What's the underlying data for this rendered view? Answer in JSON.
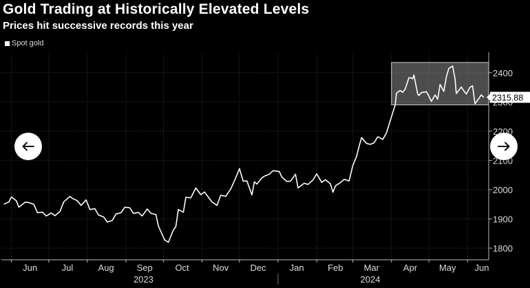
{
  "header": {
    "title": "Gold Trading at Historically Elevated Levels",
    "subtitle": "Prices hit successive records this year"
  },
  "navigation": {
    "prev_icon": "arrow-left-icon",
    "next_icon": "arrow-right-icon"
  },
  "chart_data": {
    "type": "line",
    "series": [
      {
        "name": "Spot gold",
        "color": "#ffffff",
        "points": [
          [
            "2023-05-26",
            1950
          ],
          [
            "2023-05-30",
            1958
          ],
          [
            "2023-06-01",
            1975
          ],
          [
            "2023-06-05",
            1962
          ],
          [
            "2023-06-07",
            1940
          ],
          [
            "2023-06-12",
            1957
          ],
          [
            "2023-06-15",
            1956
          ],
          [
            "2023-06-19",
            1950
          ],
          [
            "2023-06-22",
            1921
          ],
          [
            "2023-06-26",
            1923
          ],
          [
            "2023-06-29",
            1910
          ],
          [
            "2023-07-03",
            1920
          ],
          [
            "2023-07-06",
            1911
          ],
          [
            "2023-07-10",
            1925
          ],
          [
            "2023-07-13",
            1958
          ],
          [
            "2023-07-18",
            1977
          ],
          [
            "2023-07-20",
            1970
          ],
          [
            "2023-07-24",
            1962
          ],
          [
            "2023-07-27",
            1946
          ],
          [
            "2023-07-31",
            1965
          ],
          [
            "2023-08-03",
            1932
          ],
          [
            "2023-08-07",
            1935
          ],
          [
            "2023-08-10",
            1913
          ],
          [
            "2023-08-14",
            1907
          ],
          [
            "2023-08-17",
            1889
          ],
          [
            "2023-08-21",
            1895
          ],
          [
            "2023-08-24",
            1917
          ],
          [
            "2023-08-28",
            1921
          ],
          [
            "2023-08-31",
            1940
          ],
          [
            "2023-09-04",
            1938
          ],
          [
            "2023-09-07",
            1919
          ],
          [
            "2023-09-11",
            1922
          ],
          [
            "2023-09-14",
            1910
          ],
          [
            "2023-09-18",
            1934
          ],
          [
            "2023-09-21",
            1919
          ],
          [
            "2023-09-25",
            1915
          ],
          [
            "2023-09-27",
            1875
          ],
          [
            "2023-10-02",
            1828
          ],
          [
            "2023-10-05",
            1820
          ],
          [
            "2023-10-09",
            1862
          ],
          [
            "2023-10-11",
            1874
          ],
          [
            "2023-10-13",
            1932
          ],
          [
            "2023-10-17",
            1923
          ],
          [
            "2023-10-19",
            1974
          ],
          [
            "2023-10-23",
            1972
          ],
          [
            "2023-10-27",
            2006
          ],
          [
            "2023-10-31",
            1983
          ],
          [
            "2023-11-03",
            1992
          ],
          [
            "2023-11-07",
            1969
          ],
          [
            "2023-11-09",
            1958
          ],
          [
            "2023-11-13",
            1946
          ],
          [
            "2023-11-16",
            1981
          ],
          [
            "2023-11-20",
            1977
          ],
          [
            "2023-11-22",
            1990
          ],
          [
            "2023-11-24",
            2002
          ],
          [
            "2023-11-28",
            2040
          ],
          [
            "2023-12-01",
            2072
          ],
          [
            "2023-12-04",
            2029
          ],
          [
            "2023-12-07",
            2030
          ],
          [
            "2023-12-11",
            1982
          ],
          [
            "2023-12-13",
            2027
          ],
          [
            "2023-12-15",
            2019
          ],
          [
            "2023-12-19",
            2040
          ],
          [
            "2023-12-21",
            2046
          ],
          [
            "2023-12-25",
            2053
          ],
          [
            "2023-12-28",
            2065
          ],
          [
            "2024-01-02",
            2062
          ],
          [
            "2024-01-04",
            2043
          ],
          [
            "2024-01-08",
            2028
          ],
          [
            "2024-01-11",
            2029
          ],
          [
            "2024-01-15",
            2053
          ],
          [
            "2024-01-17",
            2006
          ],
          [
            "2024-01-22",
            2022
          ],
          [
            "2024-01-25",
            2018
          ],
          [
            "2024-01-29",
            2033
          ],
          [
            "2024-02-01",
            2054
          ],
          [
            "2024-02-05",
            2025
          ],
          [
            "2024-02-08",
            2034
          ],
          [
            "2024-02-12",
            2020
          ],
          [
            "2024-02-14",
            1991
          ],
          [
            "2024-02-16",
            2013
          ],
          [
            "2024-02-20",
            2024
          ],
          [
            "2024-02-23",
            2035
          ],
          [
            "2024-02-27",
            2030
          ],
          [
            "2024-03-01",
            2083
          ],
          [
            "2024-03-04",
            2114
          ],
          [
            "2024-03-06",
            2148
          ],
          [
            "2024-03-08",
            2178
          ],
          [
            "2024-03-12",
            2158
          ],
          [
            "2024-03-15",
            2155
          ],
          [
            "2024-03-18",
            2160
          ],
          [
            "2024-03-21",
            2181
          ],
          [
            "2024-03-25",
            2172
          ],
          [
            "2024-03-28",
            2194
          ],
          [
            "2024-04-01",
            2250
          ],
          [
            "2024-04-04",
            2290
          ],
          [
            "2024-04-05",
            2330
          ],
          [
            "2024-04-08",
            2339
          ],
          [
            "2024-04-10",
            2333
          ],
          [
            "2024-04-12",
            2344
          ],
          [
            "2024-04-15",
            2383
          ],
          [
            "2024-04-16",
            2383
          ],
          [
            "2024-04-18",
            2379
          ],
          [
            "2024-04-19",
            2392
          ],
          [
            "2024-04-22",
            2327
          ],
          [
            "2024-04-23",
            2322
          ],
          [
            "2024-04-25",
            2332
          ],
          [
            "2024-04-29",
            2335
          ],
          [
            "2024-05-01",
            2320
          ],
          [
            "2024-05-03",
            2302
          ],
          [
            "2024-05-06",
            2324
          ],
          [
            "2024-05-08",
            2309
          ],
          [
            "2024-05-10",
            2360
          ],
          [
            "2024-05-13",
            2336
          ],
          [
            "2024-05-15",
            2385
          ],
          [
            "2024-05-17",
            2415
          ],
          [
            "2024-05-20",
            2423
          ],
          [
            "2024-05-22",
            2379
          ],
          [
            "2024-05-23",
            2329
          ],
          [
            "2024-05-27",
            2351
          ],
          [
            "2024-05-29",
            2338
          ],
          [
            "2024-05-31",
            2327
          ],
          [
            "2024-06-03",
            2350
          ],
          [
            "2024-06-05",
            2355
          ],
          [
            "2024-06-07",
            2294
          ],
          [
            "2024-06-10",
            2311
          ],
          [
            "2024-06-12",
            2324
          ],
          [
            "2024-06-14",
            2315.88
          ]
        ]
      }
    ],
    "last_value_label": "2315.88",
    "y_axis": {
      "position": "right",
      "min": 1760,
      "max": 2470,
      "ticks": [
        1800,
        1900,
        2000,
        2100,
        2200,
        2300,
        2400
      ]
    },
    "x_axis": {
      "min": "2023-05-24",
      "max": "2024-06-18",
      "month_ticks": [
        {
          "label": "Jun",
          "date": "2023-06-01"
        },
        {
          "label": "Jul",
          "date": "2023-07-01"
        },
        {
          "label": "Aug",
          "date": "2023-08-01"
        },
        {
          "label": "Sep",
          "date": "2023-09-01"
        },
        {
          "label": "Oct",
          "date": "2023-10-01"
        },
        {
          "label": "Nov",
          "date": "2023-11-01"
        },
        {
          "label": "Dec",
          "date": "2023-12-01"
        },
        {
          "label": "Jan",
          "date": "2024-01-01"
        },
        {
          "label": "Feb",
          "date": "2024-02-01"
        },
        {
          "label": "Mar",
          "date": "2024-03-01"
        },
        {
          "label": "Apr",
          "date": "2024-04-01"
        },
        {
          "label": "May",
          "date": "2024-05-01"
        },
        {
          "label": "Jun",
          "date": "2024-06-01"
        }
      ],
      "year_labels": [
        {
          "label": "2023",
          "date": "2023-09-15"
        },
        {
          "label": "2024",
          "date": "2024-03-15"
        }
      ],
      "year_divider": "2024-01-01"
    },
    "highlight_box": {
      "x_start": "2024-04-01",
      "x_end": "2024-06-18",
      "y_min": 2290,
      "y_max": 2435
    },
    "grid": true,
    "legend_position": "top-left"
  }
}
